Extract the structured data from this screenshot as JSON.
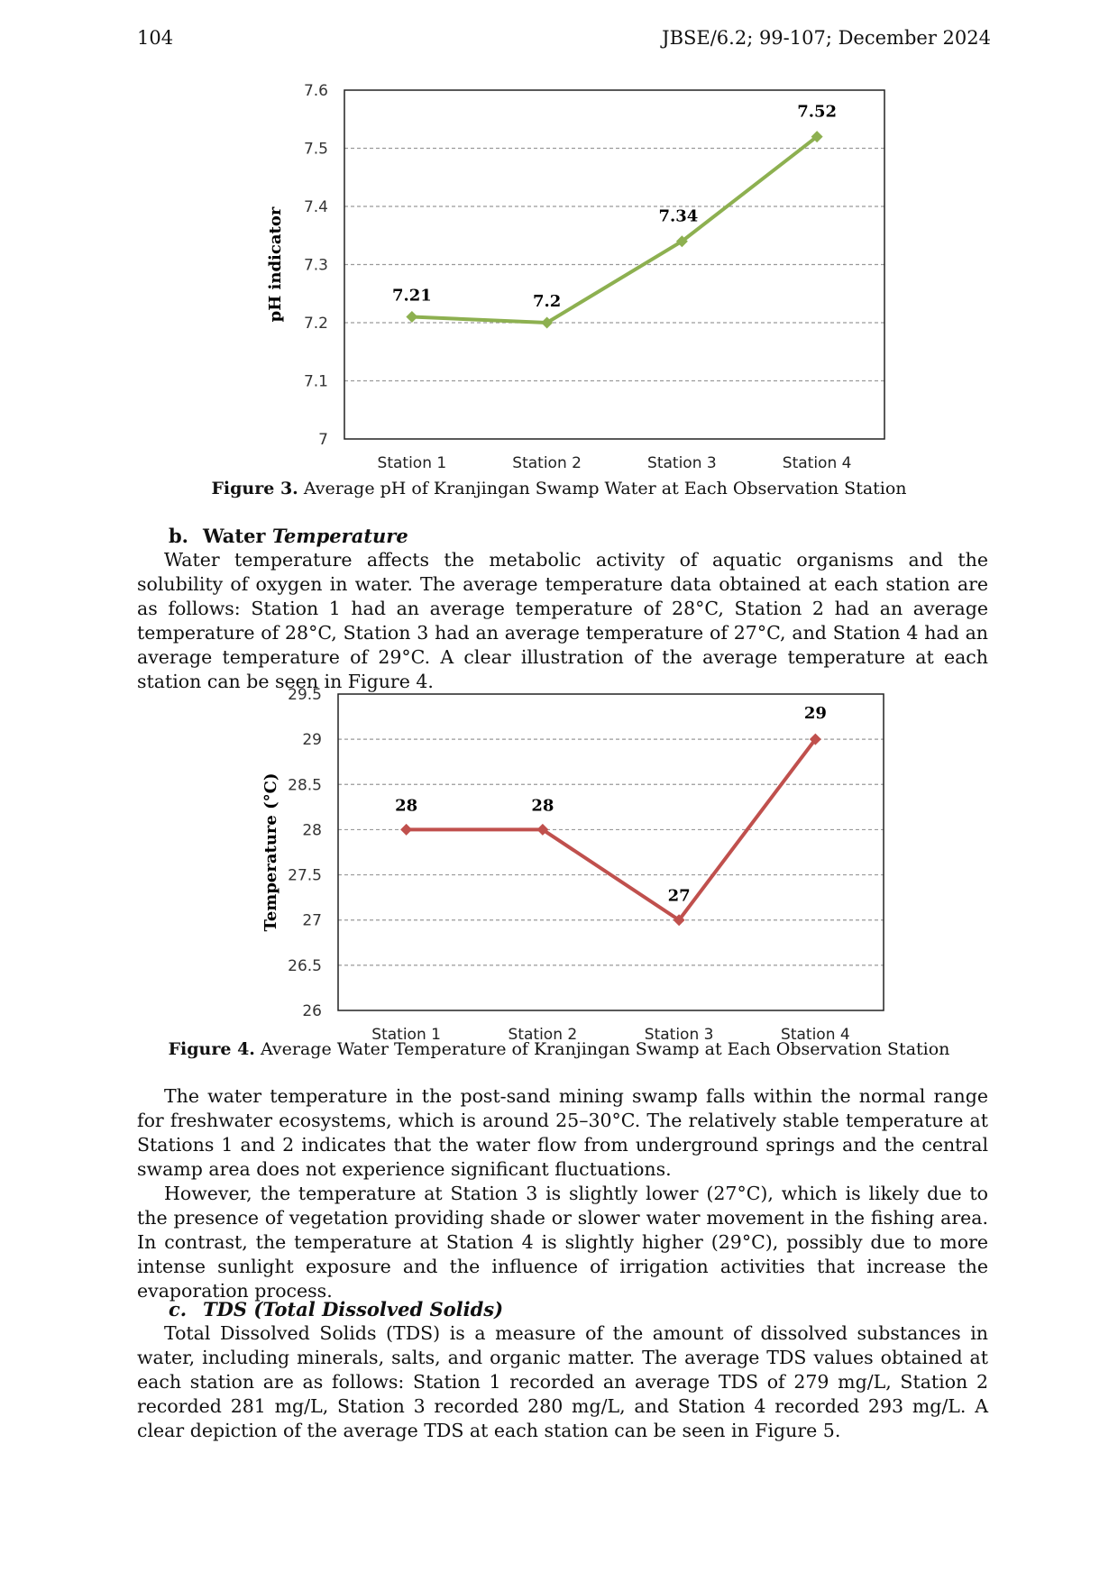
{
  "header": {
    "page_number": "104",
    "journal": "JBSE/6.2; 99-107; December 2024"
  },
  "figure3": {
    "caption_label": "Figure 3.",
    "caption_text": "Average pH of Kranjingan Swamp Water at Each Observation Station",
    "chart_data": {
      "type": "line",
      "categories": [
        "Station 1",
        "Station 2",
        "Station 3",
        "Station 4"
      ],
      "series": [
        {
          "values": [
            7.21,
            7.2,
            7.34,
            7.52
          ],
          "labels": [
            "7.21",
            "7.2",
            "7.34",
            "7.52"
          ],
          "color": "#8db050"
        }
      ],
      "ylabel": "pH indicator",
      "ylim": [
        7,
        7.6
      ],
      "yticks": [
        7,
        7.1,
        7.2,
        7.3,
        7.4,
        7.5,
        7.6
      ],
      "ytick_labels": [
        "7",
        "7.1",
        "7.2",
        "7.3",
        "7.4",
        "7.5",
        "7.6"
      ],
      "grid": "dashed horizontal"
    }
  },
  "section_b": {
    "label": "b.",
    "title_plain": "Water ",
    "title_italic": "Temperature",
    "paragraph": "Water temperature affects the metabolic activity of aquatic organisms and the solubility of oxygen in water. The average temperature data obtained at each station are as follows: Station 1 had an average temperature of 28°C, Station 2 had an average temperature of 28°C, Station 3 had an average temperature of 27°C, and Station 4 had an average temperature of 29°C. A clear illustration of the average temperature at each station can be seen in Figure 4."
  },
  "figure4": {
    "caption_label": "Figure 4.",
    "caption_text": "Average Water Temperature of Kranjingan Swamp at Each Observation Station",
    "chart_data": {
      "type": "line",
      "categories": [
        "Station 1",
        "Station 2",
        "Station 3",
        "Station 4"
      ],
      "series": [
        {
          "values": [
            28,
            28,
            27,
            29
          ],
          "labels": [
            "28",
            "28",
            "27",
            "29"
          ],
          "color": "#c0504d"
        }
      ],
      "ylabel": "Temperature (°C)",
      "ylim": [
        26,
        29.5
      ],
      "yticks": [
        26,
        26.5,
        27,
        27.5,
        28,
        28.5,
        29,
        29.5
      ],
      "ytick_labels": [
        "26",
        "26.5",
        "27",
        "27.5",
        "28",
        "28.5",
        "29",
        "29.5"
      ],
      "grid": "dashed horizontal"
    }
  },
  "paragraphs_after": [
    "The water temperature in the post-sand mining swamp falls within the normal range for freshwater ecosystems, which is around 25–30°C. The relatively stable temperature at Stations 1 and 2 indicates that the water flow from underground springs and the central swamp area does not experience significant fluctuations.",
    "However, the temperature at Station 3 is slightly lower (27°C), which is likely due to the presence of vegetation providing shade or slower water movement in the fishing area. In contrast, the temperature at Station 4 is slightly higher (29°C), possibly due to more intense sunlight exposure and the influence of irrigation activities that increase the evaporation process."
  ],
  "section_c": {
    "label": "c.",
    "title": "TDS (Total Dissolved Solids)",
    "paragraph": "Total Dissolved Solids (TDS) is a measure of the amount of dissolved substances in water, including minerals, salts, and organic matter. The average TDS values obtained at each station are as follows: Station 1 recorded an average TDS of 279 mg/L, Station 2 recorded 281 mg/L, Station 3 recorded 280 mg/L, and Station 4 recorded 293 mg/L. A clear depiction of the average TDS at each station can be seen in Figure 5."
  }
}
